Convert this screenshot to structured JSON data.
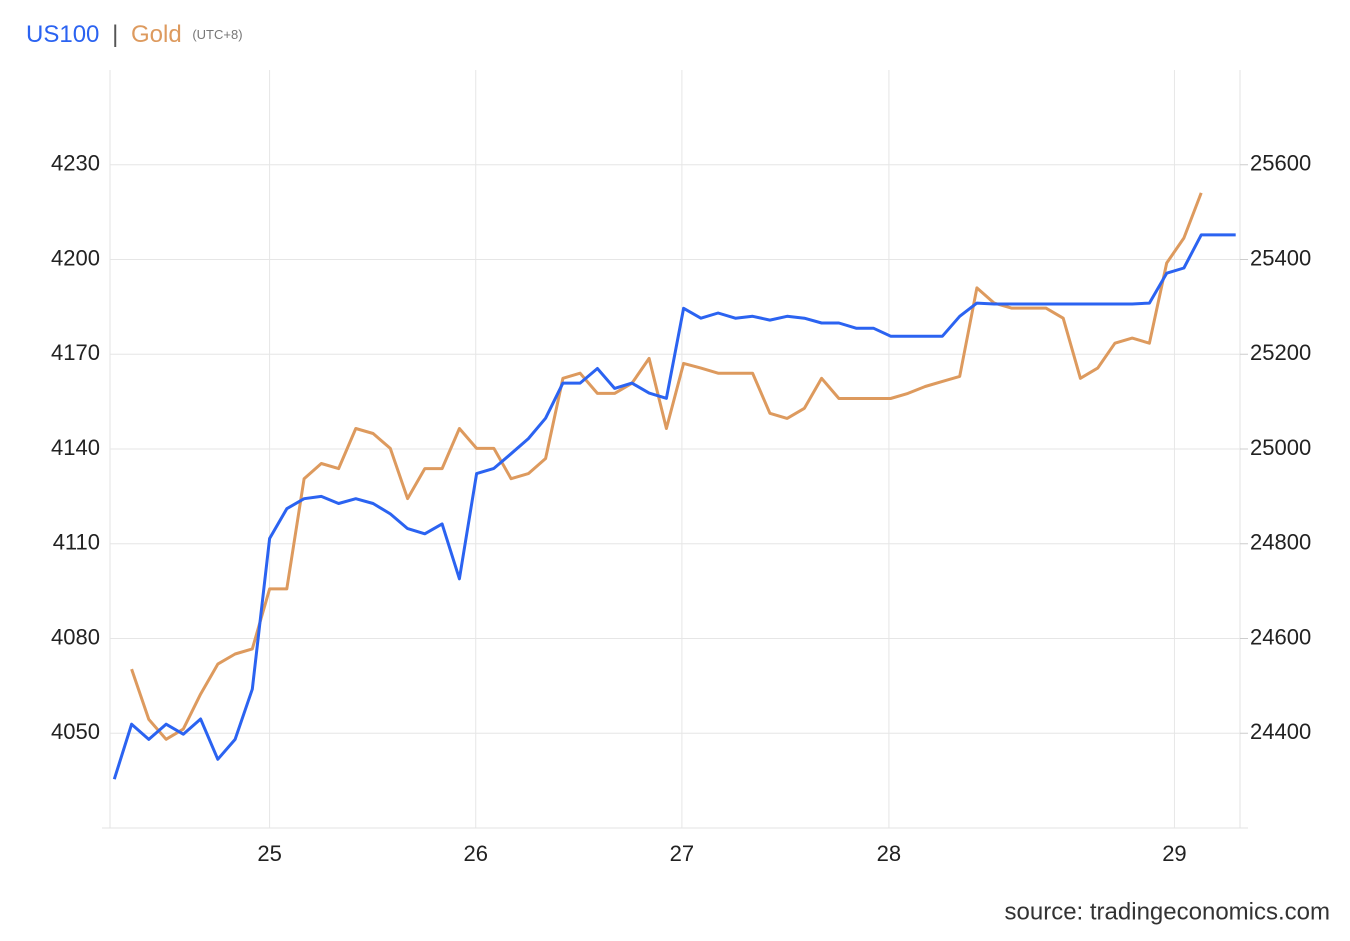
{
  "chart_data": {
    "type": "line",
    "timezone": "(UTC+8)",
    "legend_separator": "|",
    "source": "source: tradingeconomics.com",
    "grid": true,
    "x": [
      0.5,
      2.5,
      4.5,
      6.5,
      8.5,
      10.5,
      12.5,
      14.5,
      16.5,
      18.5,
      20.5,
      22.5,
      24.5,
      26.5,
      28.5,
      30.5,
      32.5,
      34.5,
      36.5,
      38.5,
      40.5,
      42.5,
      44.5,
      46.5,
      48.5,
      50.5,
      52.5,
      54.5,
      56.5,
      58.5,
      60.5,
      62.5,
      64.5,
      66.5,
      68.5,
      70.5,
      72.5,
      74.5,
      76.5,
      78.5,
      80.5,
      82.5,
      84.5,
      86.5,
      88.5,
      90.5,
      92.5,
      94.5,
      96.5,
      98.5,
      100.5,
      102.5,
      104.5,
      106.5,
      108.5,
      110.5,
      112.5,
      114.5,
      116.5,
      118.5,
      120.5,
      122.5,
      124.5,
      126.5,
      128.5,
      130.5
    ],
    "xlim": [
      0,
      131
    ],
    "xticks": [
      {
        "value": 18.5,
        "label": "25"
      },
      {
        "value": 42.4,
        "label": "26"
      },
      {
        "value": 66.3,
        "label": "27"
      },
      {
        "value": 90.3,
        "label": "28"
      },
      {
        "value": 123.4,
        "label": "29"
      }
    ],
    "ylim": [
      4020,
      4260
    ],
    "yticks": [
      4050,
      4080,
      4110,
      4140,
      4170,
      4200,
      4230
    ],
    "y2lim": [
      24200,
      25800
    ],
    "y2ticks": [
      24400,
      24600,
      24800,
      25000,
      25200,
      25400,
      25600
    ],
    "series": [
      {
        "name": "US100",
        "color": "#2b63f1",
        "axis": "y2",
        "values": [
          24303,
          24419,
          24387,
          24419,
          24398,
          24430,
          24345,
          24387,
          24493,
          24811,
          24874,
          24895,
          24900,
          24885,
          24895,
          24885,
          24863,
          24832,
          24821,
          24842,
          24726,
          24948,
          24959,
          24990,
          25022,
          25065,
          25139,
          25139,
          25170,
          25128,
          25139,
          25118,
          25107,
          25297,
          25276,
          25287,
          25276,
          25280,
          25272,
          25280,
          25276,
          25266,
          25266,
          25255,
          25255,
          25238,
          25238,
          25238,
          25238,
          25280,
          25308,
          25306,
          25306,
          25306,
          25306,
          25306,
          25306,
          25306,
          25306,
          25306,
          25308,
          25371,
          25382,
          25452,
          25452,
          25452
        ]
      },
      {
        "name": "Gold",
        "color": "#dd9a5e",
        "values": [
          null,
          4070.3,
          4054.4,
          4048.1,
          4051.3,
          4062.4,
          4071.9,
          4075.1,
          4076.7,
          4095.7,
          4095.7,
          4130.6,
          4135.4,
          4133.8,
          4146.5,
          4144.9,
          4140.2,
          4124.3,
          4133.8,
          4133.8,
          4146.5,
          4140.2,
          4140.2,
          4130.6,
          4132.2,
          4137.0,
          4162.4,
          4164.0,
          4157.6,
          4157.6,
          4160.8,
          4168.7,
          4146.5,
          4167.1,
          4165.6,
          4164.0,
          4164.0,
          4164.0,
          4151.3,
          4149.7,
          4152.9,
          4162.4,
          4156.0,
          4156.0,
          4156.0,
          4156.0,
          4157.6,
          4159.8,
          4161.4,
          4163.0,
          4191.0,
          4186.2,
          4184.6,
          4184.6,
          4184.6,
          4181.4,
          4162.4,
          4165.6,
          4173.5,
          4175.1,
          4173.5,
          4198.9,
          4206.8,
          4221.1,
          null,
          null
        ]
      }
    ]
  }
}
